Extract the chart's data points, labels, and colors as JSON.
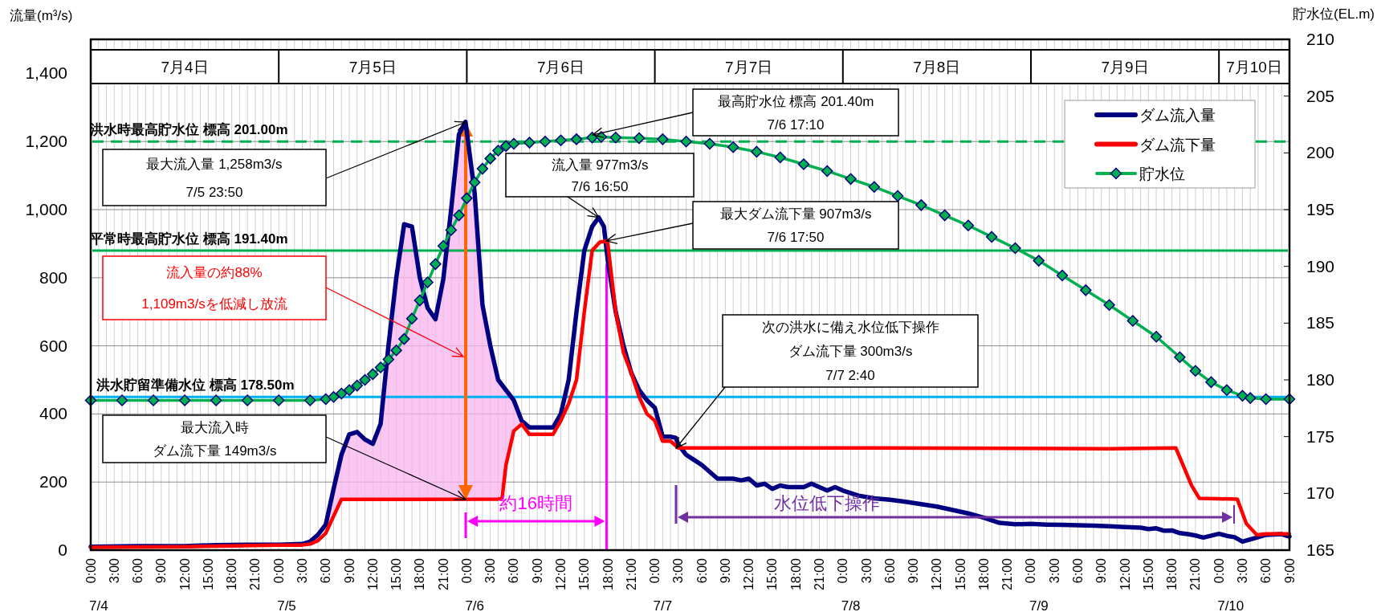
{
  "chart_data": {
    "type": "line",
    "ylabel": "流量(m³/s)",
    "y2label": "貯水位(EL.m)",
    "xlim": [
      "--07-04T00:00",
      "--07-10T09:00"
    ],
    "ylim": [
      0,
      1500
    ],
    "y2lim": [
      165,
      210
    ],
    "yticks": [
      0,
      200,
      400,
      600,
      800,
      {
        "value": 1000,
        "label": "1,000"
      },
      {
        "value": 1200,
        "label": "1,200"
      },
      {
        "value": 1400,
        "label": "1,400"
      }
    ],
    "y2ticks": [
      165,
      170,
      175,
      180,
      185,
      190,
      195,
      200,
      205,
      210
    ],
    "x2lim": [
      "--07-04T00:00",
      "--07-10T09:00"
    ],
    "x2ticks": [
      {
        "value": "--07-04T12:00",
        "label": "7月4日"
      },
      {
        "value": "--07-05T12:00",
        "label": "7月5日"
      },
      {
        "value": "--07-06T12:00",
        "label": "7月6日"
      },
      {
        "value": "--07-07T12:00",
        "label": "7月7日"
      },
      {
        "value": "--07-08T12:00",
        "label": "7月8日"
      },
      {
        "value": "--07-09T12:00",
        "label": "7月9日"
      },
      {
        "value": "--07-10T04:30",
        "label": "7月10日"
      }
    ],
    "xticks": [
      {
        "value": "--07-04T00:00",
        "label": "0:00"
      },
      {
        "value": "--07-04T01:00",
        "label": null
      },
      {
        "value": "--07-04T02:00",
        "label": null
      },
      {
        "value": "--07-04T03:00",
        "label": "3:00"
      },
      {
        "value": "--07-04T04:00",
        "label": null
      },
      {
        "value": "--07-04T05:00",
        "label": null
      },
      {
        "value": "--07-04T06:00",
        "label": "6:00"
      },
      {
        "value": "--07-04T07:00",
        "label": null
      },
      {
        "value": "--07-04T08:00",
        "label": null
      },
      {
        "value": "--07-04T09:00",
        "label": "9:00"
      },
      {
        "value": "--07-04T10:00",
        "label": null
      },
      {
        "value": "--07-04T11:00",
        "label": null
      },
      {
        "value": "--07-04T12:00",
        "label": "12:00"
      },
      {
        "value": "--07-04T13:00",
        "label": null
      },
      {
        "value": "--07-04T14:00",
        "label": null
      },
      {
        "value": "--07-04T15:00",
        "label": "15:00"
      },
      {
        "value": "--07-04T16:00",
        "label": null
      },
      {
        "value": "--07-04T17:00",
        "label": null
      },
      {
        "value": "--07-04T18:00",
        "label": "18:00"
      },
      {
        "value": "--07-04T19:00",
        "label": null
      },
      {
        "value": "--07-04T20:00",
        "label": null
      },
      {
        "value": "--07-04T21:00",
        "label": "21:00"
      },
      {
        "value": "--07-04T22:00",
        "label": null
      },
      {
        "value": "--07-04T23:00",
        "label": null
      },
      {
        "value": "--07-05T00:00",
        "label": "0:00"
      },
      {
        "value": "--07-05T01:00",
        "label": null
      },
      {
        "value": "--07-05T02:00",
        "label": null
      },
      {
        "value": "--07-05T03:00",
        "label": "3:00"
      },
      {
        "value": "--07-05T04:00",
        "label": null
      },
      {
        "value": "--07-05T05:00",
        "label": null
      },
      {
        "value": "--07-05T06:00",
        "label": "6:00"
      },
      {
        "value": "--07-05T07:00",
        "label": null
      },
      {
        "value": "--07-05T08:00",
        "label": null
      },
      {
        "value": "--07-05T09:00",
        "label": "9:00"
      },
      {
        "value": "--07-05T10:00",
        "label": null
      },
      {
        "value": "--07-05T11:00",
        "label": null
      },
      {
        "value": "--07-05T12:00",
        "label": "12:00"
      },
      {
        "value": "--07-05T13:00",
        "label": null
      },
      {
        "value": "--07-05T14:00",
        "label": null
      },
      {
        "value": "--07-05T15:00",
        "label": "15:00"
      },
      {
        "value": "--07-05T16:00",
        "label": null
      },
      {
        "value": "--07-05T17:00",
        "label": null
      },
      {
        "value": "--07-05T18:00",
        "label": "18:00"
      },
      {
        "value": "--07-05T19:00",
        "label": null
      },
      {
        "value": "--07-05T20:00",
        "label": null
      },
      {
        "value": "--07-05T21:00",
        "label": "21:00"
      },
      {
        "value": "--07-05T22:00",
        "label": null
      },
      {
        "value": "--07-05T23:00",
        "label": null
      },
      {
        "value": "--07-06T00:00",
        "label": "0:00"
      },
      {
        "value": "--07-06T01:00",
        "label": null
      },
      {
        "value": "--07-06T02:00",
        "label": null
      },
      {
        "value": "--07-06T03:00",
        "label": "3:00"
      },
      {
        "value": "--07-06T04:00",
        "label": null
      },
      {
        "value": "--07-06T05:00",
        "label": null
      },
      {
        "value": "--07-06T06:00",
        "label": "6:00"
      },
      {
        "value": "--07-06T07:00",
        "label": null
      },
      {
        "value": "--07-06T08:00",
        "label": null
      },
      {
        "value": "--07-06T09:00",
        "label": "9:00"
      },
      {
        "value": "--07-06T10:00",
        "label": null
      },
      {
        "value": "--07-06T11:00",
        "label": null
      },
      {
        "value": "--07-06T12:00",
        "label": "12:00"
      },
      {
        "value": "--07-06T13:00",
        "label": null
      },
      {
        "value": "--07-06T14:00",
        "label": null
      },
      {
        "value": "--07-06T15:00",
        "label": "15:00"
      },
      {
        "value": "--07-06T16:00",
        "label": null
      },
      {
        "value": "--07-06T17:00",
        "label": null
      },
      {
        "value": "--07-06T18:00",
        "label": "18:00"
      },
      {
        "value": "--07-06T19:00",
        "label": null
      },
      {
        "value": "--07-06T20:00",
        "label": null
      },
      {
        "value": "--07-06T21:00",
        "label": "21:00"
      },
      {
        "value": "--07-06T22:00",
        "label": null
      },
      {
        "value": "--07-06T23:00",
        "label": null
      },
      {
        "value": "--07-07T00:00",
        "label": "0:00"
      },
      {
        "value": "--07-07T01:00",
        "label": null
      },
      {
        "value": "--07-07T02:00",
        "label": null
      },
      {
        "value": "--07-07T03:00",
        "label": "3:00"
      },
      {
        "value": "--07-07T04:00",
        "label": null
      },
      {
        "value": "--07-07T05:00",
        "label": null
      },
      {
        "value": "--07-07T06:00",
        "label": "6:00"
      },
      {
        "value": "--07-07T07:00",
        "label": null
      },
      {
        "value": "--07-07T08:00",
        "label": null
      },
      {
        "value": "--07-07T09:00",
        "label": "9:00"
      },
      {
        "value": "--07-07T10:00",
        "label": null
      },
      {
        "value": "--07-07T11:00",
        "label": null
      },
      {
        "value": "--07-07T12:00",
        "label": "12:00"
      },
      {
        "value": "--07-07T13:00",
        "label": null
      },
      {
        "value": "--07-07T14:00",
        "label": null
      },
      {
        "value": "--07-07T15:00",
        "label": "15:00"
      },
      {
        "value": "--07-07T16:00",
        "label": null
      },
      {
        "value": "--07-07T17:00",
        "label": null
      },
      {
        "value": "--07-07T18:00",
        "label": "18:00"
      },
      {
        "value": "--07-07T19:00",
        "label": null
      },
      {
        "value": "--07-07T20:00",
        "label": null
      },
      {
        "value": "--07-07T21:00",
        "label": "21:00"
      },
      {
        "value": "--07-07T22:00",
        "label": null
      },
      {
        "value": "--07-07T23:00",
        "label": null
      },
      {
        "value": "--07-08T00:00",
        "label": "0:00"
      },
      {
        "value": "--07-08T01:00",
        "label": null
      },
      {
        "value": "--07-08T02:00",
        "label": null
      },
      {
        "value": "--07-08T03:00",
        "label": "3:00"
      },
      {
        "value": "--07-08T04:00",
        "label": null
      },
      {
        "value": "--07-08T05:00",
        "label": null
      },
      {
        "value": "--07-08T06:00",
        "label": "6:00"
      },
      {
        "value": "--07-08T07:00",
        "label": null
      },
      {
        "value": "--07-08T08:00",
        "label": null
      },
      {
        "value": "--07-08T09:00",
        "label": "9:00"
      },
      {
        "value": "--07-08T10:00",
        "label": null
      },
      {
        "value": "--07-08T11:00",
        "label": null
      },
      {
        "value": "--07-08T12:00",
        "label": "12:00"
      },
      {
        "value": "--07-08T13:00",
        "label": null
      },
      {
        "value": "--07-08T14:00",
        "label": null
      },
      {
        "value": "--07-08T15:00",
        "label": "15:00"
      },
      {
        "value": "--07-08T16:00",
        "label": null
      },
      {
        "value": "--07-08T17:00",
        "label": null
      },
      {
        "value": "--07-08T18:00",
        "label": "18:00"
      },
      {
        "value": "--07-08T19:00",
        "label": null
      },
      {
        "value": "--07-08T20:00",
        "label": null
      },
      {
        "value": "--07-08T21:00",
        "label": "21:00"
      },
      {
        "value": "--07-08T22:00",
        "label": null
      },
      {
        "value": "--07-08T23:00",
        "label": null
      },
      {
        "value": "--07-09T00:00",
        "label": "0:00"
      },
      {
        "value": "--07-09T01:00",
        "label": null
      },
      {
        "value": "--07-09T02:00",
        "label": null
      },
      {
        "value": "--07-09T03:00",
        "label": "3:00"
      },
      {
        "value": "--07-09T04:00",
        "label": null
      },
      {
        "value": "--07-09T05:00",
        "label": null
      },
      {
        "value": "--07-09T06:00",
        "label": "6:00"
      },
      {
        "value": "--07-09T07:00",
        "label": null
      },
      {
        "value": "--07-09T08:00",
        "label": null
      },
      {
        "value": "--07-09T09:00",
        "label": "9:00"
      },
      {
        "value": "--07-09T10:00",
        "label": null
      },
      {
        "value": "--07-09T11:00",
        "label": null
      },
      {
        "value": "--07-09T12:00",
        "label": "12:00"
      },
      {
        "value": "--07-09T13:00",
        "label": null
      },
      {
        "value": "--07-09T14:00",
        "label": null
      },
      {
        "value": "--07-09T15:00",
        "label": "15:00"
      },
      {
        "value": "--07-09T16:00",
        "label": null
      },
      {
        "value": "--07-09T17:00",
        "label": null
      },
      {
        "value": "--07-09T18:00",
        "label": "18:00"
      },
      {
        "value": "--07-09T19:00",
        "label": null
      },
      {
        "value": "--07-09T20:00",
        "label": null
      },
      {
        "value": "--07-09T21:00",
        "label": "21:00"
      },
      {
        "value": "--07-09T22:00",
        "label": null
      },
      {
        "value": "--07-09T23:00",
        "label": null
      },
      {
        "value": "--07-10T00:00",
        "label": "0:00"
      },
      {
        "value": "--07-10T01:00",
        "label": null
      },
      {
        "value": "--07-10T02:00",
        "label": null
      },
      {
        "value": "--07-10T03:00",
        "label": "3:00"
      },
      {
        "value": "--07-10T04:00",
        "label": null
      },
      {
        "value": "--07-10T05:00",
        "label": null
      },
      {
        "value": "--07-10T06:00",
        "label": "6:00"
      },
      {
        "value": "--07-10T07:00",
        "label": null
      },
      {
        "value": "--07-10T08:00",
        "label": null
      },
      {
        "value": "--07-10T09:00",
        "label": "9:00"
      }
    ],
    "grid": true,
    "legend": "top right",
    "series": [
      {
        "name": "ダム流入量",
        "type": "line",
        "color": "#000080",
        "lower": [
          null,
          null,
          null,
          null,
          null,
          null,
          null,
          null,
          null,
          50,
          100,
          149,
          149,
          149,
          149,
          149,
          149,
          149,
          149,
          149,
          149,
          149,
          149,
          149,
          149,
          149,
          149,
          149,
          149,
          149,
          150,
          150,
          250,
          350,
          370,
          null,
          null,
          null,
          null,
          null,
          null,
          null,
          null,
          null,
          null,
          null,
          null,
          null,
          null,
          null,
          null,
          null,
          null,
          null,
          null,
          null,
          null,
          null,
          null,
          null,
          null,
          null,
          null,
          null,
          null,
          null,
          null,
          null,
          null,
          null,
          null,
          null,
          null,
          null,
          null,
          null,
          null,
          null,
          null,
          null,
          null,
          null,
          null,
          null,
          null,
          null,
          null,
          null,
          null,
          null,
          null,
          null,
          null,
          null,
          null,
          null,
          null,
          null,
          null,
          null,
          null,
          null,
          null,
          null,
          null,
          null,
          null,
          null,
          null
        ],
        "upper": [
          null,
          null,
          null,
          null,
          null,
          null,
          null,
          null,
          null,
          75,
          180,
          280,
          340,
          347,
          325,
          312,
          371,
          600,
          800,
          957,
          950,
          800,
          711,
          678,
          796,
          1000,
          1221,
          1258,
          1050,
          720,
          600,
          500,
          470,
          440,
          380,
          null,
          null,
          null,
          null,
          null,
          null,
          null,
          null,
          null,
          null,
          null,
          null,
          null,
          null,
          null,
          null,
          null,
          null,
          null,
          null,
          null,
          null,
          null,
          null,
          null,
          null,
          null,
          null,
          null,
          null,
          null,
          null,
          null,
          null,
          null,
          null,
          null,
          null,
          null,
          null,
          null,
          null,
          null,
          null,
          null,
          null,
          null,
          null,
          null,
          null,
          null,
          null,
          null,
          null,
          null,
          null,
          null,
          null,
          null,
          null,
          null,
          null,
          null,
          null,
          null,
          null,
          null,
          null,
          null,
          null,
          null,
          null,
          null,
          null
        ],
        "x": [
          "--07-04T00:00",
          "--07-04T06:00",
          "--07-04T12:00",
          "--07-04T16:00",
          "--07-04T20:00",
          "--07-05T00:00",
          "--07-05T03:00",
          "--07-05T04:00",
          "--07-05T05:00",
          "--07-05T06:00",
          "--07-05T07:00",
          "--07-05T08:00",
          "--07-05T09:00",
          "--07-05T10:00",
          "--07-05T11:00",
          "--07-05T12:00",
          "--07-05T13:00",
          "--07-05T14:00",
          "--07-05T15:00",
          "--07-05T16:00",
          "--07-05T17:00",
          "--07-05T18:00",
          "--07-05T19:00",
          "--07-05T20:00",
          "--07-05T21:00",
          "--07-05T22:00",
          "--07-05T23:00",
          "--07-05T23:50",
          "--07-06T01:00",
          "--07-06T02:00",
          "--07-06T03:00",
          "--07-06T04:00",
          "--07-06T05:00",
          "--07-06T06:00",
          "--07-06T07:00",
          "--07-06T08:00",
          "--07-06T11:00",
          "--07-06T12:00",
          "--07-06T13:00",
          "--07-06T14:00",
          "--07-06T15:00",
          "--07-06T16:00",
          "--07-06T16:50",
          "--07-06T17:30",
          "--07-06T18:00",
          "--07-06T19:00",
          "--07-06T20:00",
          "--07-06T21:00",
          "--07-06T22:00",
          "--07-06T23:00",
          "--07-07T00:00",
          "--07-07T01:00",
          "--07-07T02:00",
          "--07-07T02:40",
          "--07-07T03:00",
          "--07-07T04:00",
          "--07-07T05:00",
          "--07-07T06:00",
          "--07-07T07:00",
          "--07-07T08:00",
          "--07-07T10:00",
          "--07-07T11:00",
          "--07-07T12:00",
          "--07-07T13:00",
          "--07-07T14:00",
          "--07-07T15:00",
          "--07-07T16:00",
          "--07-07T17:00",
          "--07-07T19:00",
          "--07-07T20:00",
          "--07-07T21:00",
          "--07-07T22:00",
          "--07-07T23:00",
          "--07-08T00:00",
          "--07-08T02:00",
          "--07-08T04:00",
          "--07-08T06:00",
          "--07-08T08:00",
          "--07-08T10:00",
          "--07-08T12:00",
          "--07-08T14:00",
          "--07-08T16:00",
          "--07-08T18:00",
          "--07-08T20:00",
          "--07-08T22:00",
          "--07-09T00:00",
          "--07-09T02:00",
          "--07-09T04:00",
          "--07-09T06:00",
          "--07-09T08:00",
          "--07-09T10:00",
          "--07-09T12:00",
          "--07-09T14:00",
          "--07-09T15:00",
          "--07-09T16:00",
          "--07-09T17:00",
          "--07-09T18:00",
          "--07-09T19:00",
          "--07-09T20:00",
          "--07-09T21:00",
          "--07-09T22:00",
          "--07-10T00:00",
          "--07-10T01:00",
          "--07-10T02:00",
          "--07-10T03:00",
          "--07-10T05:00",
          "--07-10T06:00",
          "--07-10T08:00",
          "--07-10T09:00"
        ],
        "values": [
          10,
          12,
          12,
          15,
          16,
          16,
          18,
          25,
          45,
          75,
          180,
          280,
          340,
          347,
          325,
          312,
          371,
          600,
          800,
          957,
          950,
          800,
          711,
          678,
          796,
          1000,
          1221,
          1258,
          1050,
          720,
          600,
          500,
          470,
          440,
          380,
          360,
          360,
          400,
          500,
          700,
          880,
          950,
          977,
          950,
          850,
          700,
          600,
          520,
          470,
          440,
          418,
          333,
          333,
          330,
          310,
          280,
          265,
          250,
          230,
          210,
          210,
          205,
          210,
          190,
          195,
          180,
          190,
          185,
          185,
          195,
          185,
          175,
          185,
          175,
          160,
          152,
          148,
          142,
          135,
          128,
          118,
          108,
          95,
          80,
          76,
          77,
          75,
          74,
          73,
          72,
          70,
          68,
          66,
          62,
          64,
          57,
          58,
          50,
          47,
          43,
          37,
          48,
          42,
          38,
          25,
          38,
          45,
          47,
          40
        ]
      },
      {
        "name": "ダム流下量",
        "type": "line",
        "color": "#ff0000",
        "x": [
          "--07-04T00:00",
          "--07-04T12:00",
          "--07-05T00:00",
          "--07-05T03:00",
          "--07-05T04:00",
          "--07-05T05:00",
          "--07-05T06:00",
          "--07-05T07:00",
          "--07-05T08:00",
          "--07-05T16:00",
          "--07-06T04:00",
          "--07-06T04:30",
          "--07-06T05:00",
          "--07-06T06:00",
          "--07-06T07:00",
          "--07-06T08:00",
          "--07-06T11:00",
          "--07-06T12:00",
          "--07-06T13:00",
          "--07-06T14:00",
          "--07-06T15:00",
          "--07-06T16:00",
          "--07-06T17:00",
          "--07-06T17:50",
          "--07-06T18:00",
          "--07-06T19:00",
          "--07-06T20:00",
          "--07-06T21:00",
          "--07-06T22:00",
          "--07-06T23:00",
          "--07-07T00:00",
          "--07-07T01:00",
          "--07-07T02:00",
          "--07-07T03:00",
          "--07-08T04:00",
          "--07-09T10:00",
          "--07-09T18:30",
          "--07-09T20:30",
          "--07-09T21:30",
          "--07-10T02:20",
          "--07-10T03:30",
          "--07-10T04:50",
          "--07-10T06:00",
          "--07-10T09:00"
        ],
        "values": [
          8,
          10,
          15,
          15,
          18,
          28,
          50,
          100,
          149,
          149,
          150,
          152,
          250,
          350,
          370,
          340,
          340,
          380,
          430,
          500,
          700,
          880,
          905,
          907,
          900,
          700,
          580,
          520,
          450,
          400,
          380,
          320,
          320,
          300,
          300,
          298,
          300,
          190,
          152,
          150,
          78,
          45,
          48,
          48
        ]
      },
      {
        "name": "貯水位",
        "type": "line",
        "axis": "y2",
        "color": "#00b050",
        "marker": "diamond",
        "x": [
          "--07-04T00:00",
          "--07-04T04:00",
          "--07-04T08:00",
          "--07-04T12:00",
          "--07-04T16:00",
          "--07-04T20:00",
          "--07-05T00:00",
          "--07-05T04:00",
          "--07-05T06:00",
          "--07-05T07:00",
          "--07-05T08:00",
          "--07-05T09:00",
          "--07-05T10:00",
          "--07-05T11:00",
          "--07-05T12:00",
          "--07-05T13:00",
          "--07-05T14:00",
          "--07-05T15:00",
          "--07-05T16:00",
          "--07-05T17:00",
          "--07-05T18:00",
          "--07-05T19:00",
          "--07-05T20:00",
          "--07-05T21:00",
          "--07-05T22:00",
          "--07-05T23:00",
          "--07-06T00:00",
          "--07-06T01:00",
          "--07-06T02:00",
          "--07-06T03:00",
          "--07-06T04:00",
          "--07-06T05:00",
          "--07-06T06:00",
          "--07-06T08:00",
          "--07-06T10:00",
          "--07-06T12:00",
          "--07-06T14:00",
          "--07-06T16:00",
          "--07-06T17:10",
          "--07-06T19:00",
          "--07-06T22:00",
          "--07-07T01:00",
          "--07-07T04:00",
          "--07-07T07:00",
          "--07-07T10:00",
          "--07-07T13:00",
          "--07-07T16:00",
          "--07-07T19:00",
          "--07-07T22:00",
          "--07-08T01:00",
          "--07-08T04:00",
          "--07-08T07:00",
          "--07-08T10:00",
          "--07-08T13:00",
          "--07-08T16:00",
          "--07-08T19:00",
          "--07-08T22:00",
          "--07-09T01:00",
          "--07-09T04:00",
          "--07-09T07:00",
          "--07-09T10:00",
          "--07-09T13:00",
          "--07-09T16:00",
          "--07-09T19:00",
          "--07-09T21:00",
          "--07-09T23:00",
          "--07-10T01:00",
          "--07-10T03:00",
          "--07-10T04:00",
          "--07-10T06:00",
          "--07-10T09:00"
        ],
        "values": [
          178.2,
          178.2,
          178.2,
          178.2,
          178.2,
          178.2,
          178.2,
          178.2,
          178.3,
          178.5,
          178.8,
          179.1,
          179.5,
          180.0,
          180.5,
          181.1,
          181.8,
          182.6,
          183.6,
          185.4,
          187.0,
          188.6,
          190.2,
          191.8,
          193.2,
          194.5,
          196.0,
          197.4,
          198.6,
          199.5,
          200.2,
          200.6,
          200.8,
          200.9,
          201.0,
          201.1,
          201.2,
          201.35,
          201.4,
          201.35,
          201.3,
          201.2,
          201.0,
          200.8,
          200.5,
          200.1,
          199.6,
          199.0,
          198.4,
          197.7,
          197.0,
          196.2,
          195.4,
          194.5,
          193.6,
          192.6,
          191.6,
          190.5,
          189.2,
          187.9,
          186.6,
          185.2,
          183.8,
          182.0,
          180.8,
          179.8,
          179.1,
          178.6,
          178.4,
          178.3,
          178.3
        ]
      }
    ],
    "ref_lines": [
      {
        "axis": "y2",
        "value": 201.0,
        "label": "洪水時最高貯水位  標高  201.00m",
        "color": "#00b050",
        "line_style": "dashed"
      },
      {
        "axis": "y2",
        "value": 191.4,
        "label": "平常時最高貯水位  標高  191.40m",
        "color": "#00b050",
        "line_style": "solid"
      },
      {
        "axis": "y2",
        "value": 178.5,
        "label": "洪水貯留準備水位  標高  178.50m",
        "color": "#00b0f0",
        "line_style": "solid"
      },
      {
        "axis": "x",
        "value": "--07-06T17:50",
        "color": "#ff00ff",
        "line_style": "solid"
      }
    ],
    "annotations": [
      "最大流入量 1,258m3/s\n7/5  23:50",
      "最高貯水位  標高 201.40m\n7/6  17:10",
      {
        "text": "流入量  977m3/s\n7/6 16:50",
        "x": "--07-06T16:50",
        "y": 977
      },
      "最大ダム流下量  907m3/s\n7/6  17:50",
      "流入量の約88%1,109m3/sを低減し放流",
      "最大流入時ダム流下量  149m3/s",
      "次の洪水に備え水位低下操作ダム流下量  300m3/s\n7/7  2:40",
      "約16時間",
      "水位低下操作",
      "7/4",
      "7/5",
      "7/6",
      "7/7",
      "7/8",
      "7/9",
      "7/10"
    ]
  }
}
